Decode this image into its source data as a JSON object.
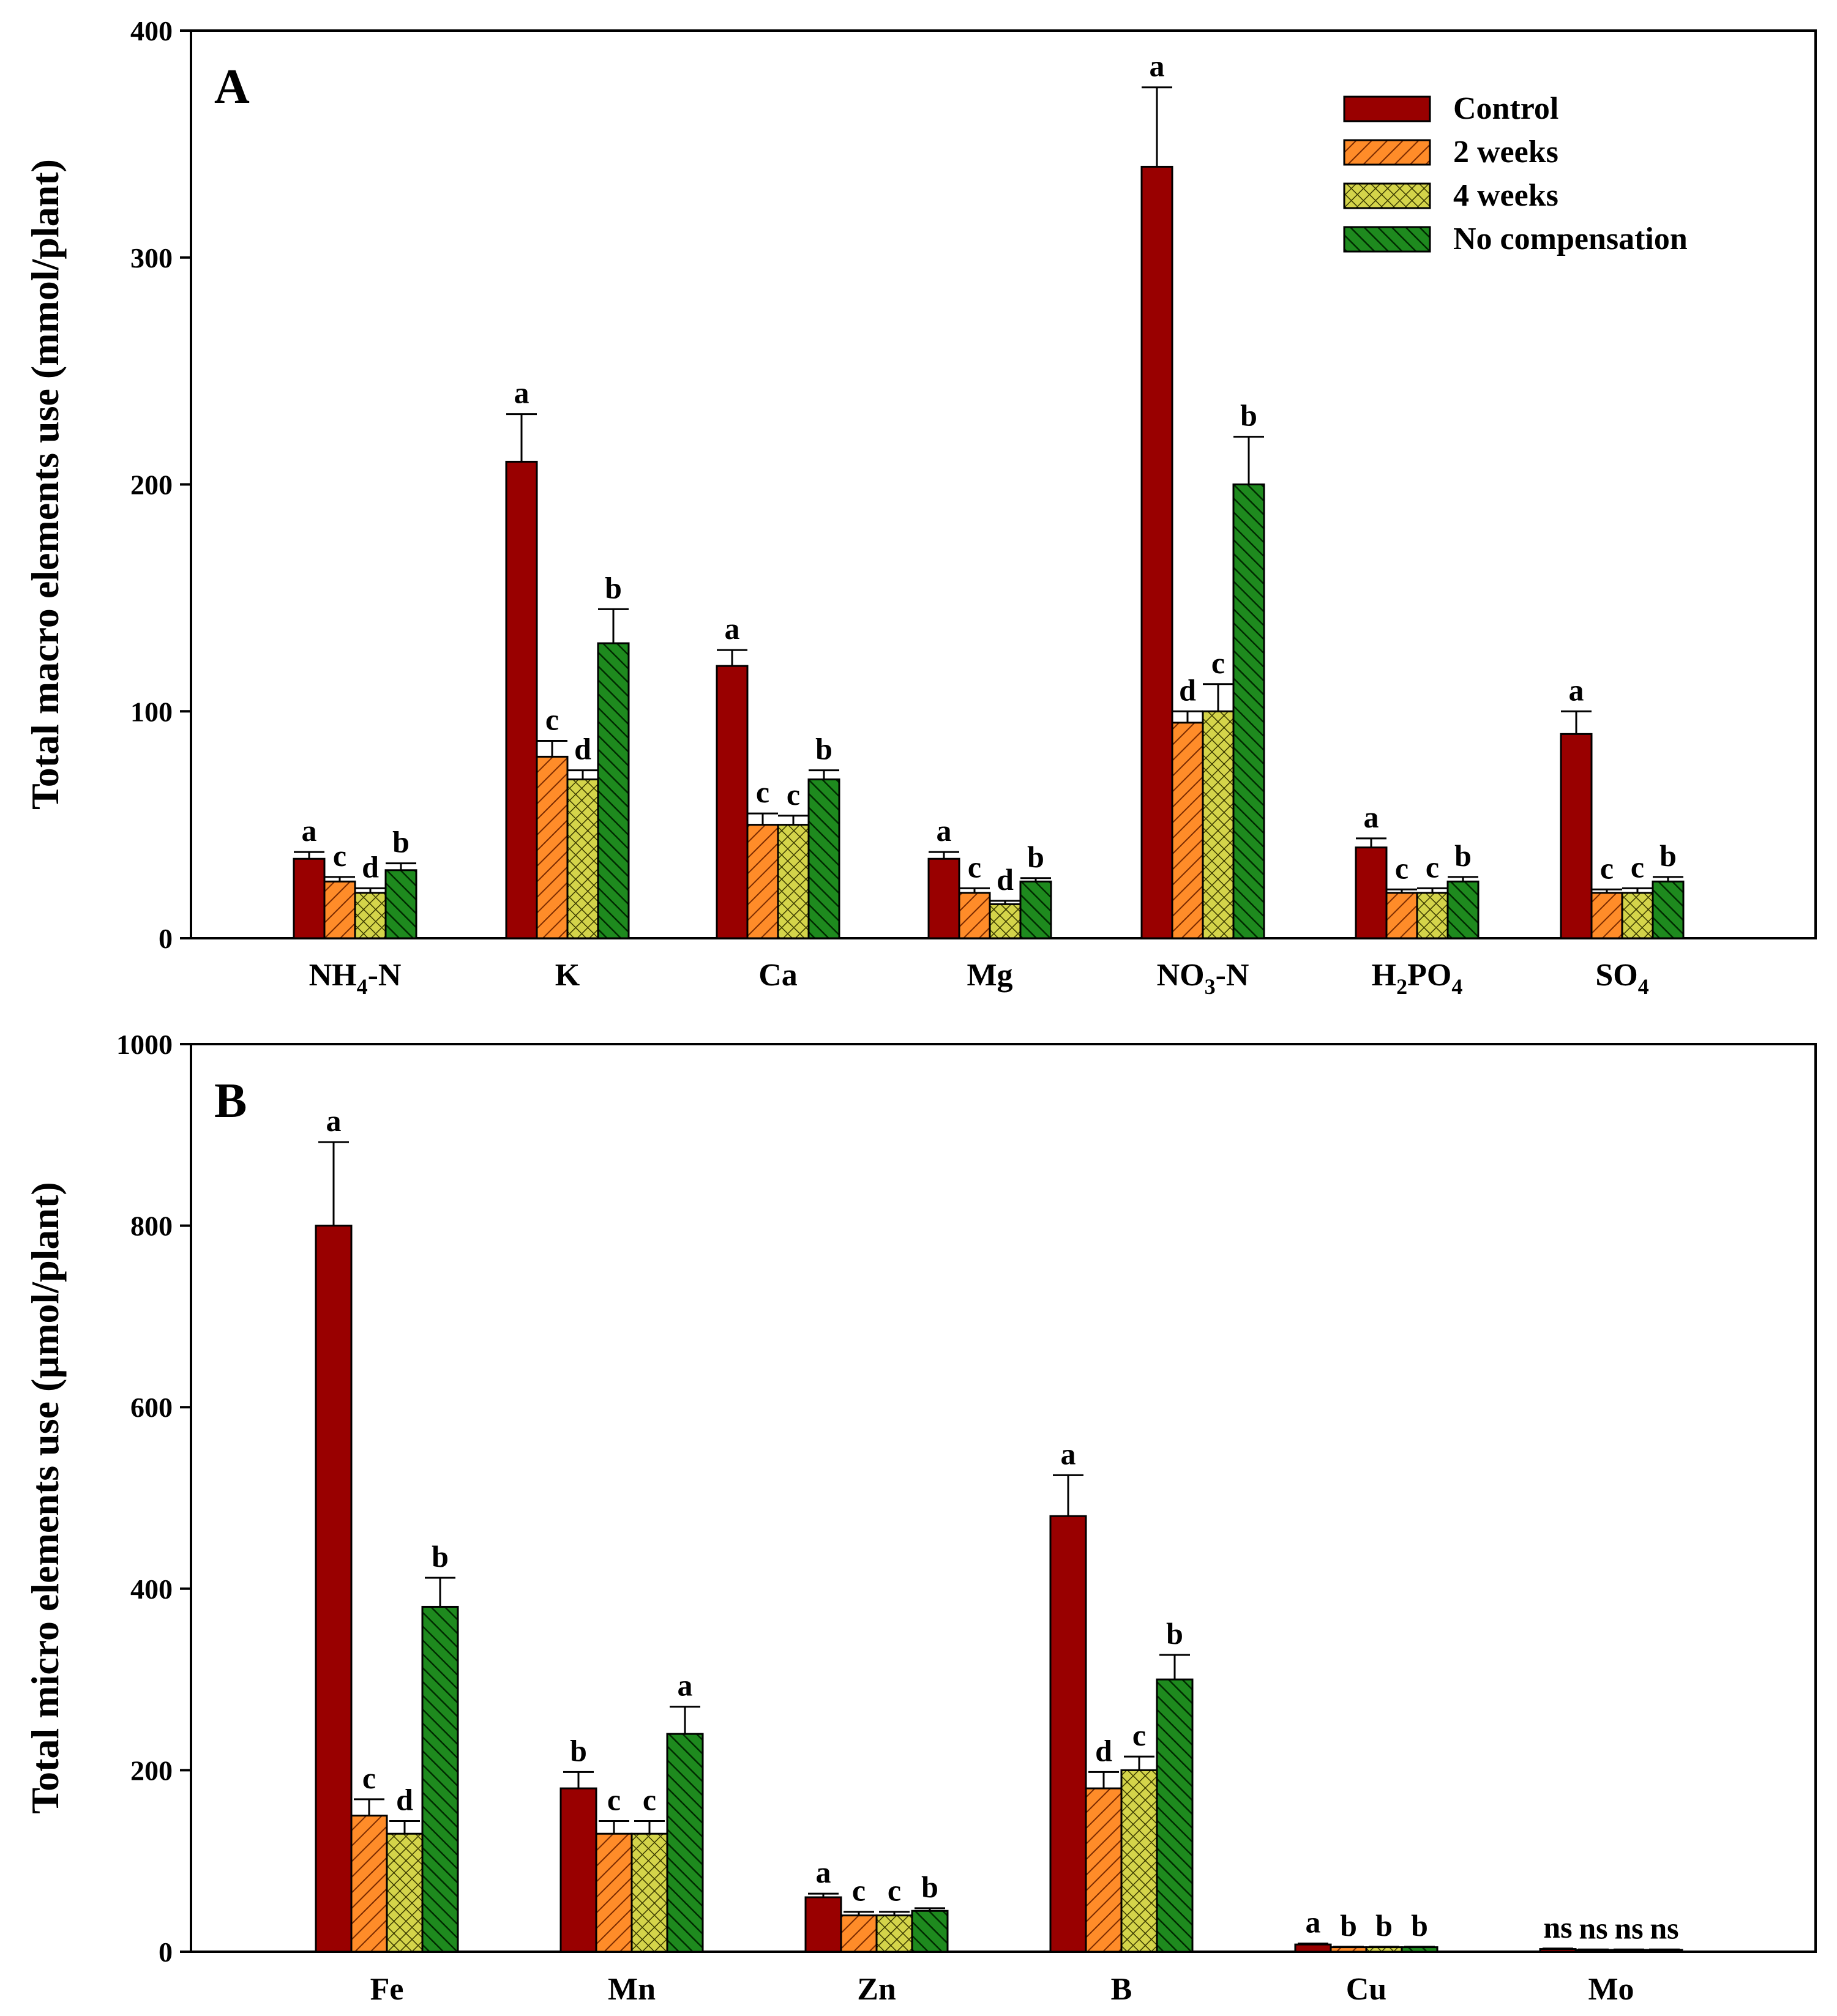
{
  "legend": [
    "Control",
    "2 weeks",
    "4 weeks",
    "No compensation"
  ],
  "colors": {
    "control": "#990000",
    "w2": "#FF8C29",
    "w4": "#D4D44A",
    "nocomp": "#1E8A1E"
  },
  "chart_data": [
    {
      "type": "bar",
      "panel_label": "A",
      "ylabel": "Total macro elements use (mmol/plant)",
      "ylim": [
        0,
        400
      ],
      "yticks": [
        "0",
        "100",
        "200",
        "300",
        "400"
      ],
      "categories": [
        "NH4-N",
        "K",
        "Ca",
        "Mg",
        "NO3-N",
        "H2PO4",
        "SO4"
      ],
      "category_labels": [
        {
          "main": "NH",
          "sub": "4",
          "tail": "-N"
        },
        {
          "main": "K",
          "sub": "",
          "tail": ""
        },
        {
          "main": "Ca",
          "sub": "",
          "tail": ""
        },
        {
          "main": "Mg",
          "sub": "",
          "tail": ""
        },
        {
          "main": "NO",
          "sub": "3",
          "tail": "-N"
        },
        {
          "main": "H",
          "sub": "2",
          "tail": "PO",
          "sub2": "4"
        },
        {
          "main": "SO",
          "sub": "4",
          "tail": ""
        }
      ],
      "series": [
        {
          "name": "Control",
          "values": [
            35,
            210,
            120,
            35,
            340,
            40,
            90
          ],
          "errors": [
            3,
            21,
            7,
            3,
            35,
            4,
            10
          ],
          "letters": [
            "a",
            "a",
            "a",
            "a",
            "a",
            "a",
            "a"
          ]
        },
        {
          "name": "2 weeks",
          "values": [
            25,
            80,
            50,
            20,
            95,
            20,
            20
          ],
          "errors": [
            2,
            7,
            5,
            2,
            5,
            1.5,
            1.5
          ],
          "letters": [
            "c",
            "c",
            "c",
            "c",
            "d",
            "c",
            "c"
          ]
        },
        {
          "name": "4 weeks",
          "values": [
            20,
            70,
            50,
            15,
            100,
            20,
            20
          ],
          "errors": [
            2,
            4,
            4,
            1.5,
            12,
            2,
            2
          ],
          "letters": [
            "d",
            "d",
            "c",
            "d",
            "c",
            "c",
            "c"
          ]
        },
        {
          "name": "No compensation",
          "values": [
            30,
            130,
            70,
            25,
            200,
            25,
            25
          ],
          "errors": [
            3,
            15,
            4,
            1.5,
            21,
            2,
            2
          ],
          "letters": [
            "b",
            "b",
            "b",
            "b",
            "b",
            "b",
            "b"
          ]
        }
      ]
    },
    {
      "type": "bar",
      "panel_label": "B",
      "ylabel": "Total micro elements use (µmol/plant)",
      "ylim": [
        0,
        1000
      ],
      "yticks": [
        "0",
        "200",
        "400",
        "600",
        "800",
        "1000"
      ],
      "categories": [
        "Fe",
        "Mn",
        "Zn",
        "B",
        "Cu",
        "Mo"
      ],
      "category_labels": [
        {
          "main": "Fe",
          "sub": "",
          "tail": ""
        },
        {
          "main": "Mn",
          "sub": "",
          "tail": ""
        },
        {
          "main": "Zn",
          "sub": "",
          "tail": ""
        },
        {
          "main": "B",
          "sub": "",
          "tail": ""
        },
        {
          "main": "Cu",
          "sub": "",
          "tail": ""
        },
        {
          "main": "Mo",
          "sub": "",
          "tail": ""
        }
      ],
      "series": [
        {
          "name": "Control",
          "values": [
            800,
            180,
            60,
            480,
            8,
            3
          ],
          "errors": [
            92,
            18,
            4,
            45,
            1,
            0.5
          ],
          "letters": [
            "a",
            "b",
            "a",
            "a",
            "a",
            "ns"
          ]
        },
        {
          "name": "2 weeks",
          "values": [
            150,
            130,
            40,
            180,
            5,
            2
          ],
          "errors": [
            18,
            14,
            4,
            18,
            0.5,
            0.5
          ],
          "letters": [
            "c",
            "c",
            "c",
            "d",
            "b",
            "ns"
          ]
        },
        {
          "name": "4 weeks",
          "values": [
            130,
            130,
            40,
            200,
            5,
            2
          ],
          "errors": [
            14,
            14,
            4,
            15,
            0.5,
            0.5
          ],
          "letters": [
            "d",
            "c",
            "c",
            "c",
            "b",
            "ns"
          ]
        },
        {
          "name": "No compensation",
          "values": [
            380,
            240,
            45,
            300,
            5,
            2
          ],
          "errors": [
            32,
            30,
            3,
            27,
            0.5,
            0.5
          ],
          "letters": [
            "b",
            "a",
            "b",
            "b",
            "b",
            "ns"
          ]
        }
      ]
    }
  ]
}
